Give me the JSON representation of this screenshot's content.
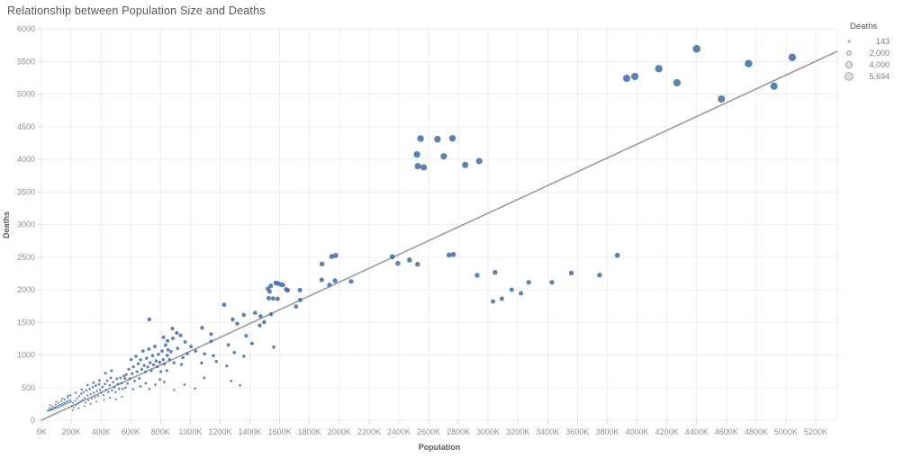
{
  "chart": {
    "title": "Relationship between Population Size and Deaths",
    "xlabel": "Population",
    "ylabel": "Deaths"
  },
  "legend": {
    "title": "Deaths",
    "items": [
      {
        "label": "143",
        "value": 143
      },
      {
        "label": "2,000",
        "value": 2000
      },
      {
        "label": "4,000",
        "value": 4000
      },
      {
        "label": "5,694",
        "value": 5694
      }
    ]
  },
  "colors": {
    "point": "#49709f",
    "trend_line": "#9b9b9b",
    "grid": "#ececec",
    "tick_mark": "#d7d7d7",
    "tick_text": "#8f8f8f",
    "axis_title_text": "#595959",
    "title_text": "#545454",
    "legend_dot_fill": "#cccccc",
    "legend_dot_stroke": "#9a9a9a"
  },
  "chart_data": {
    "type": "scatter",
    "title": "Relationship between Population Size and Deaths",
    "xlabel": "Population",
    "ylabel": "Deaths",
    "x_unit": "thousands",
    "xlim": [
      0,
      5345
    ],
    "ylim": [
      0,
      6000
    ],
    "grid": true,
    "x_tick_values": [
      0,
      200,
      400,
      600,
      800,
      1000,
      1200,
      1400,
      1600,
      1800,
      2000,
      2200,
      2400,
      2600,
      2800,
      3000,
      3200,
      3400,
      3600,
      3800,
      4000,
      4200,
      4400,
      4600,
      4800,
      5000,
      5200
    ],
    "x_tick_labels": [
      "0K",
      "200K",
      "400K",
      "600K",
      "800K",
      "1000K",
      "1200K",
      "1400K",
      "1600K",
      "1800K",
      "2000K",
      "2200K",
      "2400K",
      "2600K",
      "2800K",
      "3000K",
      "3200K",
      "3400K",
      "3600K",
      "3800K",
      "4000K",
      "4200K",
      "4400K",
      "4600K",
      "4800K",
      "5000K",
      "5200K"
    ],
    "y_tick_values": [
      0,
      500,
      1000,
      1500,
      2000,
      2500,
      3000,
      3500,
      4000,
      4500,
      5000,
      5500,
      6000
    ],
    "y_tick_labels": [
      "0",
      "500",
      "1000",
      "1500",
      "2000",
      "2500",
      "3000",
      "3500",
      "4000",
      "4500",
      "5000",
      "5500",
      "6000"
    ],
    "size_encoding": "Deaths",
    "size_domain": [
      143,
      5694
    ],
    "legend_position": "top-right",
    "trend_line": {
      "points": [
        [
          0,
          0
        ],
        [
          5345,
          5655
        ]
      ]
    },
    "points": [
      [
        42,
        143
      ],
      [
        50,
        150
      ],
      [
        58,
        160
      ],
      [
        65,
        155
      ],
      [
        72,
        175
      ],
      [
        78,
        165
      ],
      [
        85,
        190
      ],
      [
        92,
        180
      ],
      [
        98,
        205
      ],
      [
        105,
        190
      ],
      [
        112,
        220
      ],
      [
        118,
        200
      ],
      [
        125,
        235
      ],
      [
        132,
        215
      ],
      [
        138,
        250
      ],
      [
        145,
        230
      ],
      [
        152,
        265
      ],
      [
        158,
        245
      ],
      [
        165,
        280
      ],
      [
        172,
        255
      ],
      [
        178,
        295
      ],
      [
        185,
        270
      ],
      [
        192,
        310
      ],
      [
        198,
        285
      ],
      [
        55,
        185
      ],
      [
        75,
        210
      ],
      [
        95,
        240
      ],
      [
        115,
        265
      ],
      [
        135,
        295
      ],
      [
        155,
        320
      ],
      [
        175,
        350
      ],
      [
        195,
        380
      ],
      [
        60,
        230
      ],
      [
        100,
        280
      ],
      [
        140,
        330
      ],
      [
        180,
        375
      ],
      [
        205,
        220
      ],
      [
        212,
        265
      ],
      [
        219,
        195
      ],
      [
        226,
        300
      ],
      [
        233,
        235
      ],
      [
        240,
        335
      ],
      [
        247,
        255
      ],
      [
        254,
        370
      ],
      [
        261,
        285
      ],
      [
        268,
        405
      ],
      [
        275,
        310
      ],
      [
        282,
        430
      ],
      [
        289,
        340
      ],
      [
        296,
        265
      ],
      [
        303,
        455
      ],
      [
        310,
        380
      ],
      [
        317,
        305
      ],
      [
        324,
        480
      ],
      [
        331,
        400
      ],
      [
        338,
        330
      ],
      [
        345,
        505
      ],
      [
        352,
        420
      ],
      [
        359,
        350
      ],
      [
        366,
        530
      ],
      [
        373,
        445
      ],
      [
        380,
        370
      ],
      [
        387,
        550
      ],
      [
        394,
        465
      ],
      [
        210,
        155
      ],
      [
        250,
        185
      ],
      [
        290,
        215
      ],
      [
        330,
        250
      ],
      [
        370,
        285
      ],
      [
        230,
        420
      ],
      [
        270,
        470
      ],
      [
        310,
        540
      ],
      [
        350,
        575
      ],
      [
        390,
        610
      ],
      [
        402,
        425
      ],
      [
        410,
        510
      ],
      [
        418,
        385
      ],
      [
        426,
        555
      ],
      [
        434,
        465
      ],
      [
        442,
        605
      ],
      [
        450,
        430
      ],
      [
        458,
        535
      ],
      [
        466,
        650
      ],
      [
        474,
        455
      ],
      [
        482,
        585
      ],
      [
        490,
        505
      ],
      [
        498,
        430
      ],
      [
        506,
        635
      ],
      [
        514,
        555
      ],
      [
        522,
        480
      ],
      [
        530,
        650
      ],
      [
        538,
        565
      ],
      [
        546,
        480
      ],
      [
        554,
        680
      ],
      [
        420,
        310
      ],
      [
        460,
        345
      ],
      [
        500,
        320
      ],
      [
        540,
        360
      ],
      [
        430,
        720
      ],
      [
        470,
        760
      ],
      [
        562,
        640
      ],
      [
        570,
        700
      ],
      [
        578,
        560
      ],
      [
        586,
        780
      ],
      [
        594,
        640
      ],
      [
        602,
        930
      ],
      [
        610,
        715
      ],
      [
        618,
        820
      ],
      [
        626,
        600
      ],
      [
        634,
        980
      ],
      [
        642,
        745
      ],
      [
        650,
        865
      ],
      [
        658,
        640
      ],
      [
        666,
        925
      ],
      [
        674,
        780
      ],
      [
        682,
        1060
      ],
      [
        690,
        840
      ],
      [
        698,
        740
      ],
      [
        706,
        950
      ],
      [
        714,
        815
      ],
      [
        722,
        1090
      ],
      [
        730,
        880
      ],
      [
        738,
        760
      ],
      [
        746,
        990
      ],
      [
        754,
        850
      ],
      [
        762,
        1130
      ],
      [
        770,
        910
      ],
      [
        778,
        820
      ],
      [
        786,
        1010
      ],
      [
        794,
        890
      ],
      [
        802,
        745
      ],
      [
        810,
        1060
      ],
      [
        818,
        930
      ],
      [
        826,
        860
      ],
      [
        834,
        1150
      ],
      [
        842,
        760
      ],
      [
        700,
        565
      ],
      [
        725,
        480
      ],
      [
        765,
        545
      ],
      [
        795,
        625
      ],
      [
        825,
        585
      ],
      [
        565,
        500
      ],
      [
        615,
        475
      ],
      [
        665,
        520
      ],
      [
        845,
        995
      ],
      [
        850,
        1080
      ],
      [
        725,
        1545
      ],
      [
        820,
        1270
      ],
      [
        847,
        1218
      ],
      [
        883,
        1255
      ],
      [
        909,
        1338
      ],
      [
        935,
        1300
      ],
      [
        965,
        1200
      ],
      [
        870,
        1050
      ],
      [
        915,
        1100
      ],
      [
        950,
        960
      ],
      [
        980,
        1020
      ],
      [
        860,
        930
      ],
      [
        890,
        880
      ],
      [
        940,
        855
      ],
      [
        880,
        1405
      ],
      [
        891,
        465
      ],
      [
        961,
        545
      ],
      [
        1005,
        1130
      ],
      [
        1035,
        1060
      ],
      [
        1075,
        878
      ],
      [
        1079,
        1416
      ],
      [
        1095,
        1016
      ],
      [
        1139,
        1320
      ],
      [
        1155,
        989
      ],
      [
        1175,
        901
      ],
      [
        1227,
        1770
      ],
      [
        1245,
        831
      ],
      [
        1255,
        1154
      ],
      [
        1285,
        1545
      ],
      [
        1295,
        1039
      ],
      [
        1315,
        1480
      ],
      [
        1359,
        1614
      ],
      [
        1375,
        1292
      ],
      [
        1415,
        1177
      ],
      [
        1435,
        1645
      ],
      [
        1466,
        1452
      ],
      [
        1471,
        1595
      ],
      [
        1495,
        1503
      ],
      [
        1032,
        487
      ],
      [
        1093,
        648
      ],
      [
        1274,
        603
      ],
      [
        1334,
        534
      ],
      [
        1140,
        1210
      ],
      [
        1360,
        980
      ],
      [
        1522,
        2017
      ],
      [
        1532,
        1972
      ],
      [
        1540,
        2059
      ],
      [
        1574,
        2105
      ],
      [
        1588,
        2096
      ],
      [
        1608,
        2082
      ],
      [
        1622,
        2073
      ],
      [
        1644,
        2004
      ],
      [
        1654,
        1990
      ],
      [
        1526,
        1871
      ],
      [
        1556,
        1866
      ],
      [
        1586,
        1861
      ],
      [
        1710,
        1742
      ],
      [
        1736,
        1994
      ],
      [
        1738,
        1843
      ],
      [
        1542,
        1623
      ],
      [
        1560,
        1120
      ],
      [
        1884,
        2395
      ],
      [
        1950,
        2510
      ],
      [
        1976,
        2525
      ],
      [
        1882,
        2152
      ],
      [
        1934,
        2073
      ],
      [
        1972,
        2140
      ],
      [
        2080,
        2128
      ],
      [
        2356,
        2506
      ],
      [
        2394,
        2404
      ],
      [
        2472,
        2455
      ],
      [
        2526,
        2390
      ],
      [
        2738,
        2533
      ],
      [
        2766,
        2542
      ],
      [
        2546,
        4317
      ],
      [
        2660,
        4308
      ],
      [
        2760,
        4321
      ],
      [
        2522,
        4073
      ],
      [
        2702,
        4045
      ],
      [
        2528,
        3894
      ],
      [
        2568,
        3876
      ],
      [
        2846,
        3913
      ],
      [
        2940,
        3972
      ],
      [
        2926,
        2221
      ],
      [
        3046,
        2266
      ],
      [
        3032,
        1821
      ],
      [
        3092,
        1862
      ],
      [
        3158,
        2000
      ],
      [
        3220,
        1945
      ],
      [
        3272,
        2114
      ],
      [
        3428,
        2114
      ],
      [
        3558,
        2257
      ],
      [
        3748,
        2225
      ],
      [
        3868,
        2528
      ],
      [
        3930,
        5241
      ],
      [
        3985,
        5269
      ],
      [
        4146,
        5389
      ],
      [
        4268,
        5172
      ],
      [
        4400,
        5694
      ],
      [
        4566,
        4924
      ],
      [
        4748,
        5466
      ],
      [
        4920,
        5121
      ],
      [
        5042,
        5563
      ]
    ]
  }
}
